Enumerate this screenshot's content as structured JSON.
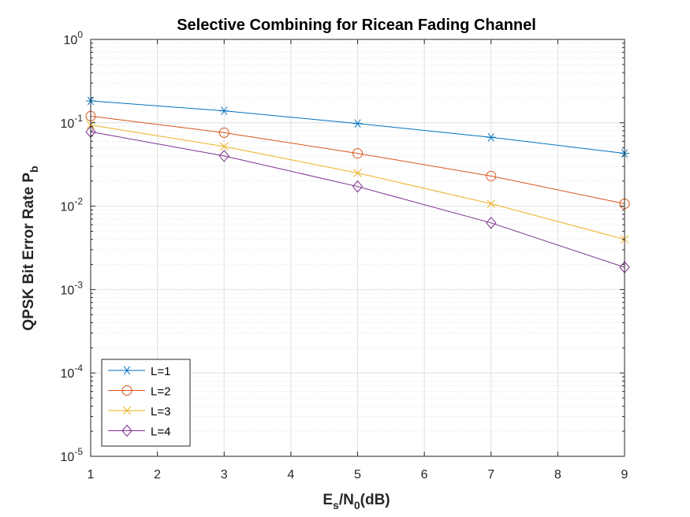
{
  "chart_data": {
    "type": "line",
    "title": "Selective Combining for Ricean Fading Channel",
    "xlabel": {
      "main": "E",
      "sub1": "s",
      "mid": "/N",
      "sub2": "0",
      "end": "(dB)"
    },
    "ylabel": {
      "main": "QPSK Bit Error Rate P",
      "sub": "b"
    },
    "xlim": [
      1,
      9
    ],
    "ylim": [
      1e-05,
      1
    ],
    "yscale": "log",
    "grid": true,
    "minor_grid": true,
    "legend_position": "bottom-left",
    "x": [
      1,
      3,
      5,
      7,
      9
    ],
    "xticks": [
      "1",
      "2",
      "3",
      "4",
      "5",
      "6",
      "7",
      "8",
      "9"
    ],
    "yticks": [
      {
        "base": "10",
        "exp": "0"
      },
      {
        "base": "10",
        "exp": "-1"
      },
      {
        "base": "10",
        "exp": "-2"
      },
      {
        "base": "10",
        "exp": "-3"
      },
      {
        "base": "10",
        "exp": "-4"
      },
      {
        "base": "10",
        "exp": "-5"
      }
    ],
    "series": [
      {
        "name": "L=1",
        "color": "#0072BD",
        "marker": "asterisk",
        "values": [
          0.183,
          0.139,
          0.098,
          0.067,
          0.043
        ]
      },
      {
        "name": "L=2",
        "color": "#D95319",
        "marker": "circle",
        "values": [
          0.12,
          0.076,
          0.043,
          0.023,
          0.0107
        ]
      },
      {
        "name": "L=3",
        "color": "#EDB120",
        "marker": "x",
        "values": [
          0.094,
          0.052,
          0.025,
          0.0107,
          0.004
        ]
      },
      {
        "name": "L=4",
        "color": "#7E2F8E",
        "marker": "diamond",
        "values": [
          0.078,
          0.04,
          0.0172,
          0.0063,
          0.00185
        ]
      }
    ]
  }
}
